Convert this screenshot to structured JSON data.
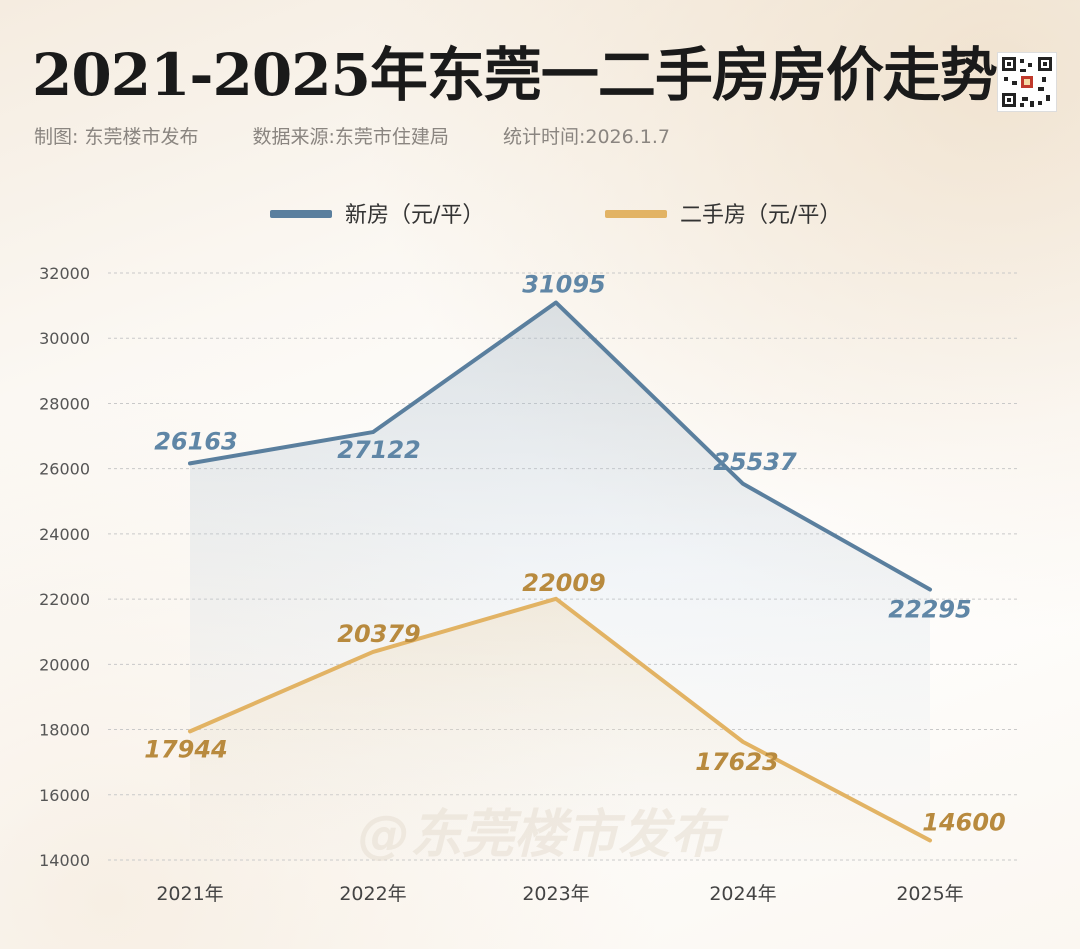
{
  "header": {
    "title": "2021-2025年东莞一二手房房价走势",
    "credit": "制图: 东莞楼市发布",
    "source": "数据来源:东莞市住建局",
    "stat_time": "统计时间:2026.1.7"
  },
  "watermark": "@东莞楼市发布",
  "chart_data": {
    "type": "line",
    "title": "2021-2025年东莞一二手房房价走势",
    "xlabel": "",
    "ylabel": "",
    "categories": [
      "2021年",
      "2022年",
      "2023年",
      "2024年",
      "2025年"
    ],
    "ylim": [
      14000,
      32000
    ],
    "yticks": [
      14000,
      16000,
      18000,
      20000,
      22000,
      24000,
      26000,
      28000,
      30000,
      32000
    ],
    "grid": true,
    "legend_position": "top-center",
    "series": [
      {
        "name": "新房（元/平）",
        "color": "#5a7f9e",
        "values": [
          26163,
          27122,
          31095,
          25537,
          22295
        ],
        "labels": [
          "26163",
          "27122",
          "31095",
          "25537",
          "22295"
        ]
      },
      {
        "name": "二手房（元/平）",
        "color": "#e2b364",
        "values": [
          17944,
          20379,
          22009,
          17623,
          14600
        ],
        "labels": [
          "17944",
          "20379",
          "22009",
          "17623",
          "14600"
        ]
      }
    ],
    "label_colors": [
      "#5f86a6",
      "#b88a3e"
    ]
  }
}
